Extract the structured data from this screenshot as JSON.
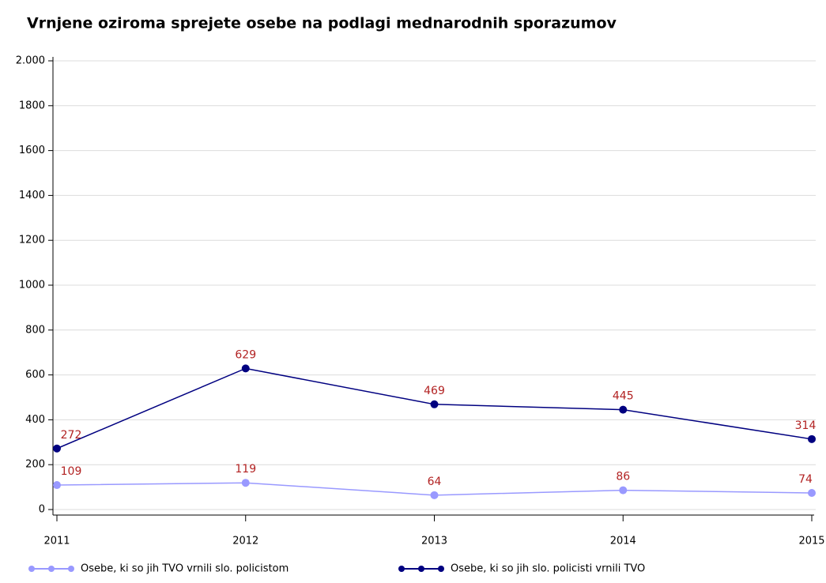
{
  "chart_data": {
    "type": "line",
    "title": "Vrnjene oziroma sprejete osebe na podlagi mednarodnih sporazumov",
    "x": [
      2011,
      2012,
      2013,
      2014,
      2015
    ],
    "xlim": [
      2011,
      2015
    ],
    "xticks": [
      2011,
      2012,
      2013,
      2014,
      2015
    ],
    "ylim": [
      0,
      2000
    ],
    "yticks": [
      0,
      200,
      400,
      600,
      800,
      1000,
      1200,
      1400,
      1600,
      1800,
      {
        "value": 2000,
        "label": "2.000"
      }
    ],
    "grid": true,
    "legend": "bottom",
    "label_color": "#b22222",
    "series": [
      {
        "name": "Osebe, ki so jih TVO vrnili slo. policistom",
        "color": "#9999ff",
        "values": [
          109,
          119,
          64,
          86,
          74
        ]
      },
      {
        "name": "Osebe, ki so jih slo. policisti vrnili TVO",
        "color": "#000080",
        "values": [
          272,
          629,
          469,
          445,
          314
        ]
      }
    ]
  }
}
